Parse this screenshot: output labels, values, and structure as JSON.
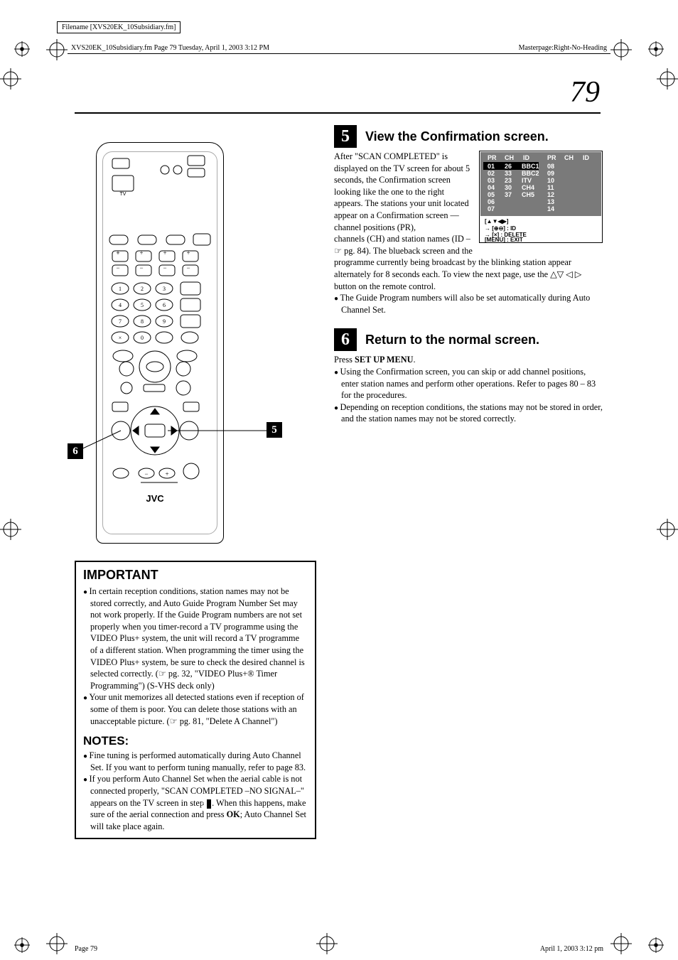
{
  "meta": {
    "filename_box": "Filename [XVS20EK_10Subsidiary.fm]",
    "header_left": "XVS20EK_10Subsidiary.fm  Page 79  Tuesday, April 1, 2003  3:12 PM",
    "header_right": "Masterpage:Right-No-Heading",
    "page_number": "79",
    "footer_left": "Page 79",
    "footer_right": "April 1, 2003 3:12 pm"
  },
  "remote": {
    "callout5_num": "5",
    "callout6_num": "6",
    "brand": "JVC",
    "tv_label": "TV"
  },
  "step5": {
    "num": "5",
    "title": "View the Confirmation screen.",
    "para1": "After \"SCAN COMPLETED\" is displayed on the TV screen for about 5 seconds, the Confirmation screen looking like the one to the right appears. The stations your unit located appear on a Confirmation screen — channel positions (PR),",
    "para2": "channels (CH) and station names (ID – ☞ pg. 84). The blueback screen and the programme currently being broadcast by the blinking station appear alternately for 8 seconds each. To view the next page, use the △▽ ◁ ▷ button on the remote control.",
    "bullet1": "The Guide Program numbers will also be set automatically during Auto Channel Set."
  },
  "conf_screen": {
    "headers": [
      "PR",
      "CH",
      "ID",
      "PR",
      "CH",
      "ID"
    ],
    "rows": [
      [
        "01",
        "26",
        "BBC1",
        "08",
        "",
        ""
      ],
      [
        "02",
        "33",
        "BBC2",
        "09",
        "",
        ""
      ],
      [
        "03",
        "23",
        "ITV",
        "10",
        "",
        ""
      ],
      [
        "04",
        "30",
        "CH4",
        "11",
        "",
        ""
      ],
      [
        "05",
        "37",
        "CH5",
        "12",
        "",
        ""
      ],
      [
        "06",
        "",
        "",
        "13",
        "",
        ""
      ],
      [
        "07",
        "",
        "",
        "14",
        "",
        ""
      ]
    ],
    "legend1": "[▲▼◀▶]",
    "legend2a": "→ [⊕⊖] : ID",
    "legend2b": "→ [×]   : DELETE",
    "legend3": "[MENU] : EXIT"
  },
  "step6": {
    "num": "6",
    "title": "Return to the normal screen.",
    "press_line_pre": "Press ",
    "press_line_bold": "SET UP MENU",
    "press_line_post": ".",
    "bullet1": "Using the Confirmation screen, you can skip or add channel positions, enter station names and perform other operations. Refer to pages 80 – 83 for the procedures.",
    "bullet2": "Depending on reception conditions, the stations may not be stored in order, and the station names may not be stored correctly."
  },
  "important": {
    "title": "IMPORTANT",
    "b1": "In certain reception conditions, station names may not be stored correctly, and Auto Guide Program Number Set may not work properly. If the Guide Program numbers are not set properly when you timer-record a TV programme using the VIDEO Plus+ system, the unit will record a TV programme of a different station. When programming the timer using the VIDEO Plus+ system, be sure to check the desired channel is selected correctly. (☞ pg. 32, \"VIDEO Plus+® Timer Programming\") (S-VHS deck only)",
    "b2": "Your unit memorizes all detected stations even if reception of some of them is poor. You can delete those stations with an unacceptable picture. (☞ pg. 81, \"Delete A Channel\")"
  },
  "notes": {
    "title": "NOTES:",
    "b1": "Fine tuning is performed automatically during Auto Channel Set. If you want to perform tuning manually, refer to page 83.",
    "b2_pre": "If you perform Auto Channel Set when the aerial cable is not connected properly, \"SCAN COMPLETED –NO SIGNAL–\" appears on the TV screen in step ",
    "b2_badge": "5",
    "b2_post": ". When this happens, make sure of the aerial connection and press ",
    "b2_bold": "OK",
    "b2_end": "; Auto Channel Set will take place again."
  },
  "style": {
    "colors": {
      "text": "#000000",
      "bg": "#ffffff",
      "screen_bg": "#5a5a5a",
      "screen_hilite": "#000000"
    }
  }
}
